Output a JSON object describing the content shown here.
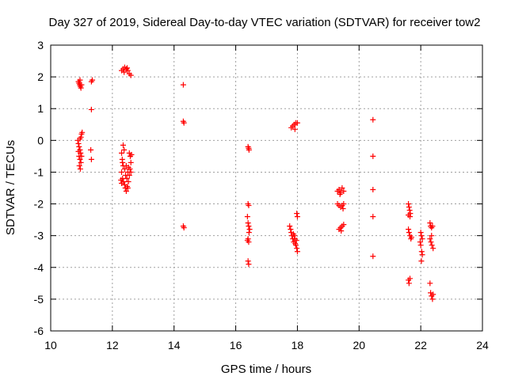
{
  "chart_data": {
    "type": "scatter",
    "title": "Day 327 of 2019, Sidereal Day-to-day VTEC variation (SDTVAR) for receiver tow2",
    "xlabel": "GPS time / hours",
    "ylabel": "SDTVAR / TECUs",
    "xlim": [
      10,
      24
    ],
    "ylim": [
      -6,
      3
    ],
    "xticks": [
      "10",
      "12",
      "14",
      "16",
      "18",
      "20",
      "22",
      "24"
    ],
    "yticks": [
      "3",
      "2",
      "1",
      "0",
      "-1",
      "-2",
      "-3",
      "-4",
      "-5",
      "-6"
    ],
    "grid": true,
    "marker": "+",
    "color": "#ff0000",
    "series": [
      {
        "name": "SDTVAR",
        "points": [
          [
            10.9,
            1.85
          ],
          [
            10.92,
            1.8
          ],
          [
            10.94,
            1.75
          ],
          [
            10.96,
            1.7
          ],
          [
            10.98,
            1.65
          ],
          [
            11.0,
            1.75
          ],
          [
            10.95,
            1.9
          ],
          [
            11.32,
            1.85
          ],
          [
            11.35,
            1.9
          ],
          [
            11.32,
            0.97
          ],
          [
            11.3,
            -0.3
          ],
          [
            11.32,
            -0.6
          ],
          [
            10.88,
            0.0
          ],
          [
            10.9,
            -0.1
          ],
          [
            10.92,
            -0.2
          ],
          [
            10.95,
            -0.3
          ],
          [
            10.97,
            -0.4
          ],
          [
            10.92,
            -0.5
          ],
          [
            10.95,
            -0.6
          ],
          [
            10.98,
            -0.7
          ],
          [
            10.93,
            -0.8
          ],
          [
            10.96,
            -0.9
          ],
          [
            11.0,
            -0.5
          ],
          [
            10.98,
            0.1
          ],
          [
            11.0,
            0.2
          ],
          [
            11.02,
            0.25
          ],
          [
            10.9,
            -0.35
          ],
          [
            10.95,
            0.05
          ],
          [
            12.3,
            2.2
          ],
          [
            12.35,
            2.25
          ],
          [
            12.4,
            2.3
          ],
          [
            12.45,
            2.25
          ],
          [
            12.5,
            2.2
          ],
          [
            12.55,
            2.1
          ],
          [
            12.6,
            2.05
          ],
          [
            12.38,
            2.15
          ],
          [
            12.48,
            2.28
          ],
          [
            12.3,
            -0.4
          ],
          [
            12.32,
            -0.6
          ],
          [
            12.35,
            -0.8
          ],
          [
            12.3,
            -1.0
          ],
          [
            12.33,
            -1.2
          ],
          [
            12.36,
            -1.3
          ],
          [
            12.4,
            -1.4
          ],
          [
            12.42,
            -1.5
          ],
          [
            12.45,
            -1.6
          ],
          [
            12.5,
            -1.5
          ],
          [
            12.52,
            -1.3
          ],
          [
            12.55,
            -1.1
          ],
          [
            12.57,
            -0.9
          ],
          [
            12.6,
            -0.7
          ],
          [
            12.58,
            -0.5
          ],
          [
            12.55,
            -0.4
          ],
          [
            12.35,
            -0.15
          ],
          [
            12.38,
            -0.3
          ],
          [
            12.4,
            -0.9
          ],
          [
            12.43,
            -1.1
          ],
          [
            12.47,
            -1.2
          ],
          [
            12.5,
            -1.0
          ],
          [
            12.28,
            -1.25
          ],
          [
            12.3,
            -1.35
          ],
          [
            12.33,
            -0.7
          ],
          [
            12.45,
            -0.8
          ],
          [
            12.6,
            -1.0
          ],
          [
            12.62,
            -0.45
          ],
          [
            12.48,
            -1.45
          ],
          [
            12.52,
            -0.85
          ],
          [
            14.3,
            1.75
          ],
          [
            14.3,
            0.6
          ],
          [
            14.32,
            0.55
          ],
          [
            14.3,
            -2.7
          ],
          [
            14.32,
            -2.75
          ],
          [
            16.4,
            -0.2
          ],
          [
            16.42,
            -0.25
          ],
          [
            16.43,
            -0.3
          ],
          [
            16.4,
            -2.0
          ],
          [
            16.42,
            -2.05
          ],
          [
            16.38,
            -2.4
          ],
          [
            16.4,
            -2.6
          ],
          [
            16.42,
            -2.7
          ],
          [
            16.45,
            -2.8
          ],
          [
            16.43,
            -2.9
          ],
          [
            16.4,
            -3.1
          ],
          [
            16.42,
            -3.2
          ],
          [
            16.38,
            -3.15
          ],
          [
            16.4,
            -3.8
          ],
          [
            16.42,
            -3.9
          ],
          [
            17.8,
            0.4
          ],
          [
            17.85,
            0.45
          ],
          [
            17.9,
            0.5
          ],
          [
            17.95,
            0.55
          ],
          [
            18.0,
            0.55
          ],
          [
            17.92,
            0.35
          ],
          [
            17.75,
            -2.7
          ],
          [
            17.78,
            -2.8
          ],
          [
            17.8,
            -2.9
          ],
          [
            17.82,
            -3.0
          ],
          [
            17.85,
            -3.1
          ],
          [
            17.88,
            -3.2
          ],
          [
            17.9,
            -3.0
          ],
          [
            17.92,
            -3.1
          ],
          [
            17.95,
            -3.3
          ],
          [
            17.98,
            -3.4
          ],
          [
            18.0,
            -3.5
          ],
          [
            17.98,
            -2.3
          ],
          [
            18.0,
            -2.4
          ],
          [
            17.87,
            -2.95
          ],
          [
            17.93,
            -3.25
          ],
          [
            17.97,
            -3.15
          ],
          [
            19.3,
            -1.6
          ],
          [
            19.35,
            -1.55
          ],
          [
            19.4,
            -1.65
          ],
          [
            19.45,
            -1.5
          ],
          [
            19.5,
            -1.6
          ],
          [
            19.38,
            -1.7
          ],
          [
            19.3,
            -2.0
          ],
          [
            19.35,
            -2.05
          ],
          [
            19.4,
            -2.1
          ],
          [
            19.45,
            -2.05
          ],
          [
            19.5,
            -2.0
          ],
          [
            19.48,
            -2.15
          ],
          [
            19.35,
            -2.8
          ],
          [
            19.4,
            -2.75
          ],
          [
            19.45,
            -2.7
          ],
          [
            19.5,
            -2.65
          ],
          [
            19.42,
            -2.85
          ],
          [
            20.45,
            0.65
          ],
          [
            20.45,
            -0.5
          ],
          [
            20.45,
            -1.55
          ],
          [
            20.45,
            -2.4
          ],
          [
            20.45,
            -3.65
          ],
          [
            21.6,
            -2.0
          ],
          [
            21.62,
            -2.1
          ],
          [
            21.64,
            -2.2
          ],
          [
            21.66,
            -2.3
          ],
          [
            21.65,
            -2.4
          ],
          [
            21.6,
            -2.35
          ],
          [
            21.6,
            -2.8
          ],
          [
            21.62,
            -2.9
          ],
          [
            21.65,
            -3.0
          ],
          [
            21.68,
            -3.1
          ],
          [
            21.7,
            -3.05
          ],
          [
            21.6,
            -4.4
          ],
          [
            21.62,
            -4.5
          ],
          [
            21.65,
            -4.35
          ],
          [
            22.0,
            -2.9
          ],
          [
            22.02,
            -3.0
          ],
          [
            22.05,
            -3.1
          ],
          [
            22.0,
            -3.3
          ],
          [
            22.03,
            -3.5
          ],
          [
            22.05,
            -3.6
          ],
          [
            22.02,
            -3.8
          ],
          [
            21.98,
            -3.2
          ],
          [
            22.3,
            -2.6
          ],
          [
            22.32,
            -2.7
          ],
          [
            22.35,
            -2.75
          ],
          [
            22.38,
            -2.7
          ],
          [
            22.3,
            -3.1
          ],
          [
            22.33,
            -3.2
          ],
          [
            22.36,
            -3.3
          ],
          [
            22.4,
            -3.4
          ],
          [
            22.35,
            -3.0
          ],
          [
            22.3,
            -4.5
          ],
          [
            22.32,
            -4.8
          ],
          [
            22.35,
            -4.9
          ],
          [
            22.38,
            -5.0
          ],
          [
            22.4,
            -4.85
          ]
        ]
      }
    ]
  }
}
